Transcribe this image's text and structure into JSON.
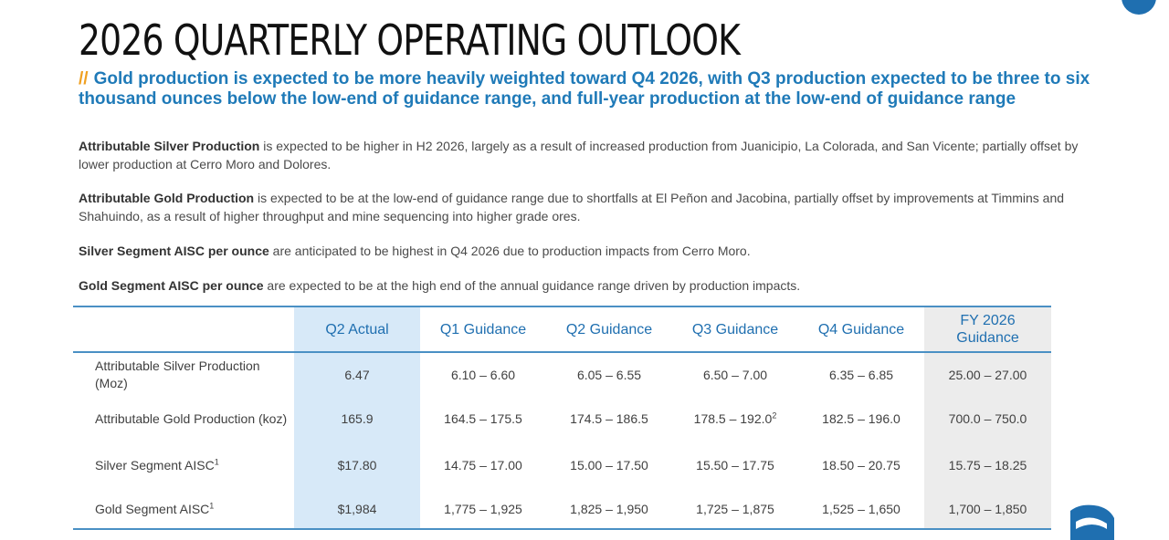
{
  "title": "2026 QUARTERLY OPERATING OUTLOOK",
  "subtitle": {
    "prefix": "//",
    "text": "Gold production is expected to be more heavily weighted toward Q4 2026, with Q3 production expected to be three to six thousand ounces below the low-end of guidance range, and full-year production at the low-end of guidance range"
  },
  "paragraphs": [
    {
      "bold": "Attributable Silver Production",
      "text": " is expected to be higher in H2 2026, largely as a result of increased production from Juanicipio, La Colorada, and San Vicente; partially offset by lower production at Cerro Moro and Dolores."
    },
    {
      "bold": "Attributable Gold Production",
      "text": " is expected to be at the low-end of guidance range due to shortfalls at El Peñon and Jacobina, partially offset by improvements at Timmins and Shahuindo, as a result of higher throughput and mine sequencing into higher grade ores."
    },
    {
      "bold": "Silver Segment AISC per ounce",
      "text": " are anticipated to be highest in Q4 2026 due to production impacts from Cerro Moro."
    },
    {
      "bold": "Gold Segment AISC per ounce",
      "text": " are expected to be at the high end of the annual guidance range driven by production impacts."
    }
  ],
  "table": {
    "headers": [
      "",
      "Q2 Actual",
      "Q1 Guidance",
      "Q2 Guidance",
      "Q3 Guidance",
      "Q4 Guidance",
      "FY 2026 Guidance"
    ],
    "rows": [
      {
        "label": "Attributable Silver Production (Moz)",
        "label_sup": "",
        "cells": [
          "6.47",
          "6.10 – 6.60",
          "6.05 – 6.55",
          "6.50 – 7.00",
          "6.35 – 6.85",
          "25.00 – 27.00"
        ],
        "q3_sup": ""
      },
      {
        "label": "Attributable Gold Production (koz)",
        "label_sup": "",
        "cells": [
          "165.9",
          "164.5 – 175.5",
          "174.5 – 186.5",
          "178.5 – 192.0",
          "182.5 – 196.0",
          "700.0 – 750.0"
        ],
        "q3_sup": "2"
      },
      {
        "label": "Silver Segment AISC",
        "label_sup": "1",
        "cells": [
          "$17.80",
          "14.75 – 17.00",
          "15.00 – 17.50",
          "15.50 – 17.75",
          "18.50 – 20.75",
          "15.75 – 18.25"
        ],
        "q3_sup": ""
      },
      {
        "label": "Gold Segment AISC",
        "label_sup": "1",
        "cells": [
          "$1,984",
          "1,775 – 1,925",
          "1,825 – 1,950",
          "1,725 – 1,875",
          "1,525 – 1,650",
          "1,700 – 1,850"
        ],
        "q3_sup": ""
      }
    ]
  },
  "colors": {
    "title": "#111111",
    "subtitle": "#1f7ab8",
    "accent": "#f0a020",
    "header_text": "#1f6fb0",
    "rule": "#4a90c4",
    "actual_highlight": "#d7e9f8",
    "fy_highlight": "#ececec"
  },
  "icons": {
    "corner": "page-number-badge",
    "logo": "company-logo-mark"
  }
}
